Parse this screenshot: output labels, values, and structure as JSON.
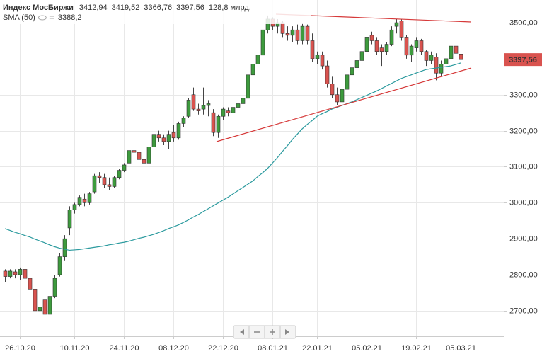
{
  "chart_data": {
    "type": "candlestick",
    "title": "Индекс МосБиржи",
    "legend": {
      "ohlc": [
        {
          "value": 3412.94,
          "label": "3412,94"
        },
        {
          "value": 3419.52,
          "label": "3419,52"
        },
        {
          "value": 3366.76,
          "label": "3366,76"
        },
        {
          "value": 3397.56,
          "label": "3397,56"
        }
      ],
      "volume": "128,8 млрд.",
      "sma_value": {
        "value": 3388.2,
        "label": "3388,2"
      }
    },
    "last_price": {
      "value": 3397.56,
      "label": "3397,56"
    },
    "categories": [
      null,
      null,
      null,
      "26.10.20",
      null,
      null,
      null,
      null,
      null,
      null,
      null,
      null,
      null,
      null,
      "10.11.20",
      null,
      null,
      null,
      null,
      null,
      null,
      null,
      null,
      null,
      "24.11.20",
      null,
      null,
      null,
      null,
      null,
      null,
      null,
      null,
      null,
      "08.12.20",
      null,
      null,
      null,
      null,
      null,
      null,
      null,
      null,
      null,
      "22.12.20",
      null,
      null,
      null,
      null,
      null,
      null,
      null,
      null,
      null,
      "08.01.21",
      null,
      null,
      null,
      null,
      null,
      null,
      null,
      null,
      "22.01.21",
      null,
      null,
      null,
      null,
      null,
      null,
      null,
      null,
      null,
      "05.02.21",
      null,
      null,
      null,
      null,
      null,
      null,
      null,
      null,
      null,
      "19.02.21",
      null,
      null,
      null,
      null,
      null,
      null,
      null,
      null,
      "05.03.21"
    ],
    "open": [
      2810,
      2795,
      2808,
      2800,
      2815,
      2790,
      2760,
      2700,
      2730,
      2690,
      2740,
      2800,
      2850,
      2930,
      2980,
      2995,
      3010,
      3000,
      3030,
      3075,
      3070,
      3050,
      3045,
      3070,
      3090,
      3110,
      3145,
      3140,
      3120,
      3110,
      3155,
      3190,
      3180,
      3170,
      3195,
      3180,
      3220,
      3240,
      3300,
      3260,
      3260,
      3270,
      3250,
      3195,
      3240,
      3255,
      3250,
      3265,
      3275,
      3290,
      3355,
      3385,
      3410,
      3480,
      3510,
      3490,
      3500,
      3470,
      3465,
      3480,
      3450,
      3490,
      3450,
      3400,
      3410,
      3380,
      3330,
      3300,
      3280,
      3315,
      3355,
      3375,
      3395,
      3420,
      3465,
      3450,
      3430,
      3420,
      3440,
      3490,
      3505,
      3460,
      3410,
      3430,
      3450,
      3420,
      3395,
      3405,
      3360,
      3385,
      3400,
      3435,
      3412.94
    ],
    "high": [
      2815,
      2815,
      2815,
      2820,
      2820,
      2800,
      2765,
      2720,
      2740,
      2750,
      2800,
      2860,
      2910,
      2990,
      3000,
      3020,
      3025,
      3030,
      3080,
      3085,
      3080,
      3070,
      3075,
      3095,
      3110,
      3150,
      3155,
      3150,
      3140,
      3160,
      3200,
      3200,
      3190,
      3200,
      3215,
      3225,
      3240,
      3290,
      3320,
      3275,
      3320,
      3285,
      3260,
      3245,
      3265,
      3265,
      3270,
      3280,
      3295,
      3360,
      3395,
      3420,
      3485,
      3520,
      3515,
      3510,
      3505,
      3490,
      3490,
      3495,
      3500,
      3495,
      3470,
      3420,
      3420,
      3395,
      3350,
      3320,
      3320,
      3360,
      3385,
      3400,
      3430,
      3470,
      3475,
      3460,
      3440,
      3445,
      3490,
      3510,
      3510,
      3465,
      3440,
      3460,
      3455,
      3425,
      3420,
      3415,
      3395,
      3410,
      3445,
      3440,
      3419.52
    ],
    "low": [
      2780,
      2790,
      2790,
      2785,
      2780,
      2740,
      2690,
      2690,
      2680,
      2665,
      2735,
      2795,
      2840,
      2910,
      2970,
      2990,
      2990,
      2995,
      3025,
      3055,
      3040,
      3035,
      3040,
      3065,
      3085,
      3105,
      3125,
      3115,
      3095,
      3105,
      3150,
      3170,
      3160,
      3150,
      3170,
      3175,
      3210,
      3235,
      3255,
      3245,
      3245,
      3240,
      3185,
      3180,
      3230,
      3240,
      3245,
      3255,
      3270,
      3285,
      3340,
      3380,
      3405,
      3470,
      3480,
      3470,
      3460,
      3450,
      3445,
      3440,
      3440,
      3440,
      3390,
      3385,
      3370,
      3320,
      3290,
      3270,
      3270,
      3305,
      3345,
      3360,
      3385,
      3415,
      3440,
      3410,
      3380,
      3410,
      3435,
      3470,
      3450,
      3400,
      3390,
      3420,
      3410,
      3380,
      3385,
      3340,
      3350,
      3375,
      3395,
      3400,
      3366.76
    ],
    "close": [
      2795,
      2810,
      2800,
      2815,
      2790,
      2760,
      2700,
      2710,
      2690,
      2740,
      2790,
      2850,
      2900,
      2980,
      2995,
      3015,
      3000,
      3025,
      3075,
      3070,
      3050,
      3045,
      3070,
      3090,
      3105,
      3145,
      3140,
      3120,
      3110,
      3155,
      3190,
      3180,
      3170,
      3190,
      3180,
      3220,
      3235,
      3285,
      3260,
      3255,
      3270,
      3275,
      3195,
      3240,
      3260,
      3250,
      3265,
      3275,
      3290,
      3355,
      3385,
      3410,
      3480,
      3510,
      3490,
      3500,
      3470,
      3465,
      3480,
      3450,
      3490,
      3450,
      3400,
      3410,
      3380,
      3330,
      3300,
      3280,
      3315,
      3355,
      3375,
      3395,
      3420,
      3460,
      3450,
      3420,
      3420,
      3440,
      3480,
      3500,
      3460,
      3410,
      3435,
      3450,
      3420,
      3395,
      3410,
      3360,
      3385,
      3400,
      3435,
      3415,
      3397.56
    ],
    "up_color": "#3d9b3d",
    "down_color": "#d9534f",
    "sma": {
      "name": "SMA (50)",
      "color": "#2b9a9e",
      "values": [
        2928,
        2923,
        2918,
        2914,
        2909,
        2905,
        2899,
        2894,
        2889,
        2883,
        2878,
        2874,
        2871,
        2868,
        2869,
        2870,
        2872,
        2874,
        2876,
        2878,
        2880,
        2883,
        2885,
        2888,
        2890,
        2893,
        2897,
        2901,
        2904,
        2908,
        2912,
        2917,
        2922,
        2928,
        2933,
        2938,
        2945,
        2952,
        2960,
        2967,
        2975,
        2983,
        2991,
        2999,
        3007,
        3015,
        3024,
        3033,
        3042,
        3051,
        3060,
        3072,
        3083,
        3095,
        3110,
        3125,
        3142,
        3158,
        3175,
        3190,
        3205,
        3217,
        3228,
        3240,
        3247,
        3253,
        3260,
        3265,
        3270,
        3275,
        3280,
        3286,
        3292,
        3298,
        3304,
        3310,
        3317,
        3324,
        3331,
        3338,
        3345,
        3350,
        3355,
        3360,
        3365,
        3370,
        3372,
        3374,
        3376,
        3378,
        3380,
        3384,
        3388.2
      ]
    },
    "ylim": [
      2629,
      3563
    ],
    "yticks": [
      {
        "value": 2700,
        "label": "2700,00"
      },
      {
        "value": 2800,
        "label": "2800,00"
      },
      {
        "value": 2900,
        "label": "2900,00"
      },
      {
        "value": 3000,
        "label": "3000,00"
      },
      {
        "value": 3100,
        "label": "3100,00"
      },
      {
        "value": 3200,
        "label": "3200,00"
      },
      {
        "value": 3300,
        "label": "3300,00"
      },
      {
        "value": 3400,
        "label": "3400,00"
      },
      {
        "value": 3500,
        "label": "3500,00"
      }
    ],
    "grid": true
  }
}
